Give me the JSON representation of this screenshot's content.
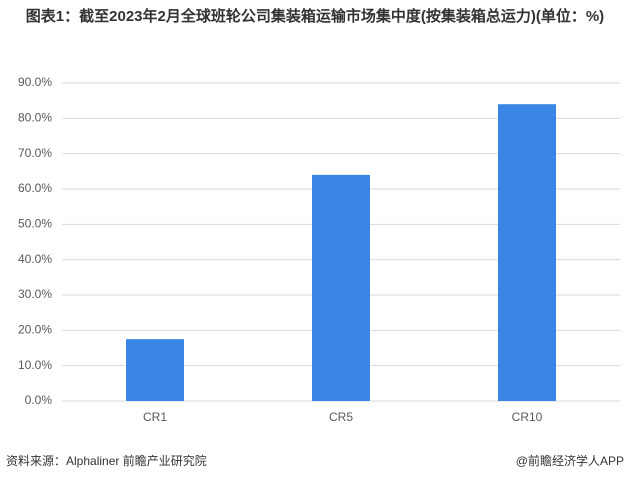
{
  "chart_data": {
    "type": "bar",
    "title": "图表1：截至2023年2月全球班轮公司集装箱运输市场集中度(按集装箱总运力)(单位：%)",
    "categories": [
      "CR1",
      "CR5",
      "CR10"
    ],
    "values": [
      17.5,
      64,
      84
    ],
    "color": "#3a86e6",
    "ylim": [
      0,
      90
    ],
    "yticks": [
      {
        "value": 0,
        "label": "0.0%"
      },
      {
        "value": 10,
        "label": "10.0%"
      },
      {
        "value": 20,
        "label": "20.0%"
      },
      {
        "value": 30,
        "label": "30.0%"
      },
      {
        "value": 40,
        "label": "40.0%"
      },
      {
        "value": 50,
        "label": "50.0%"
      },
      {
        "value": 60,
        "label": "60.0%"
      },
      {
        "value": 70,
        "label": "70.0%"
      },
      {
        "value": 80,
        "label": "80.0%"
      },
      {
        "value": 90,
        "label": "90.0%"
      }
    ],
    "grid": true,
    "source": "资料来源：Alphaliner 前瞻产业研究院",
    "credit": "@前瞻经济学人APP"
  }
}
